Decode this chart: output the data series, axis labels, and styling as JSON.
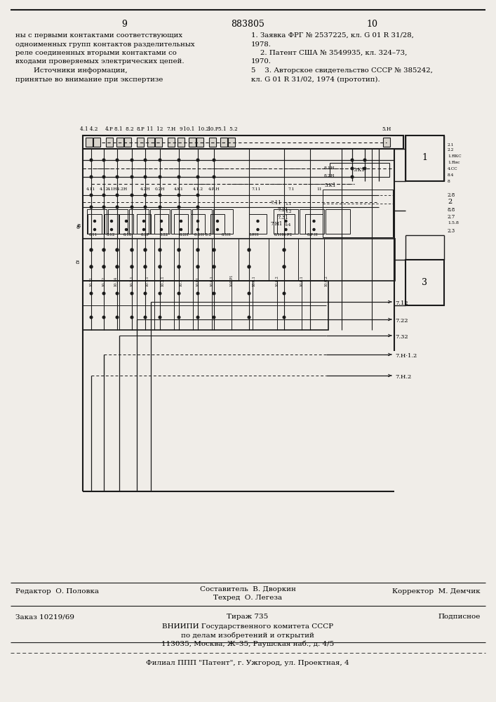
{
  "page_width": 7.07,
  "page_height": 10.0,
  "bg_color": "#f0ede8",
  "page_num_left": "9",
  "page_num_center": "883805",
  "page_num_right": "10",
  "left_col_text": [
    "ны с первыми контактами соответствующих",
    "одноименных групп контактов разделительных",
    "реле соединенных вторыми контактами со",
    "входами проверяемых электрических цепей.",
    "        Источники информации,",
    "принятые во внимание при экспертизе"
  ],
  "right_col_text_line1": "1. Заявка ФРГ № 2537225, кл. G 01 R 31/28,",
  "right_col_text_line2": "1978.",
  "right_col_text_line3": "    2. Патент США № 3549935, кл. 324–73,",
  "right_col_text_line4": "1970.",
  "right_col_text_line5": "5    3. Авторское свидетельство СССР № 385242,",
  "right_col_text_line6": "кл. G 01 R 31/02, 1974 (прототип).",
  "editor": "Редактор  О. Половка",
  "composer": "Составитель  В. Дворкин",
  "techred": "Техред  О. Легеза",
  "corrector": "Корректор  М. Демчик",
  "order": "Заказ 10219/69",
  "circulation": "Тираж 735",
  "subscription": "Подписное",
  "org_line1": "ВНИИПИ Государственного комитета СССР",
  "org_line2": "по делам изобретений и открытий",
  "org_line3": "113035, Москва, Ж–35, Раушская наб., д. 4/5",
  "branch": "Филиал ППП \"Патент\", г. Ужгород, ул. Проектная, 4"
}
